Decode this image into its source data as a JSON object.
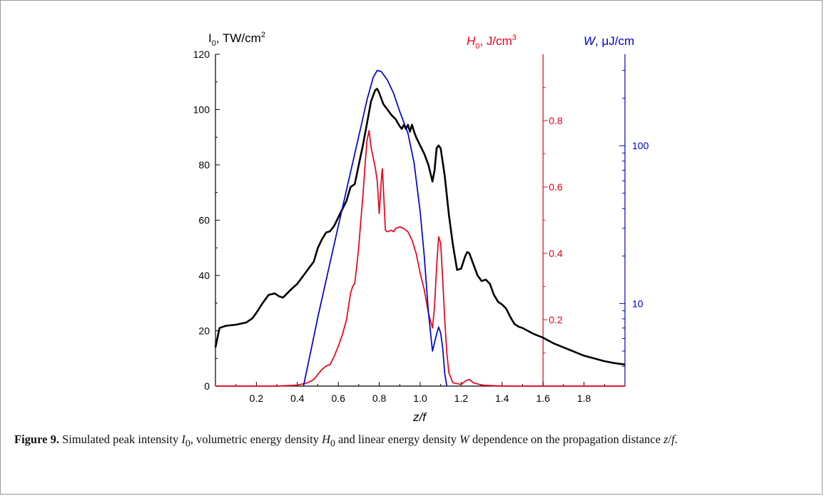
{
  "chart_data": {
    "type": "line",
    "xlabel": "z/f",
    "xlim": [
      0,
      2.0
    ],
    "x_ticks": [
      "0.2",
      "0.4",
      "0.6",
      "0.8",
      "1.0",
      "1.2",
      "1.4",
      "1.6",
      "1.8"
    ],
    "axes": {
      "left": {
        "label_main": "I",
        "label_sub": "0",
        "label_rest": ", TW/cm",
        "label_sup": "2",
        "ylim": [
          0,
          120
        ],
        "ticks": [
          "0",
          "20",
          "40",
          "60",
          "80",
          "100",
          "120"
        ],
        "color": "#000000"
      },
      "red": {
        "label_main": "H",
        "label_sub": "0",
        "label_rest": ", J/cm",
        "label_sup": "3",
        "ylim": [
          0,
          1.0
        ],
        "position_x": 1.6,
        "ticks": [
          "0.2",
          "0.4",
          "0.6",
          "0.8"
        ],
        "color": "#e8001a"
      },
      "blue": {
        "label_main": "W",
        "label_rest": ", μJ/cm",
        "scale": "log",
        "ylim": [
          3,
          380
        ],
        "ticks": [
          "10",
          "100"
        ],
        "color": "#0000cc"
      }
    },
    "series": [
      {
        "axis": "left",
        "color": "#000000",
        "points": [
          [
            0.0,
            14
          ],
          [
            0.02,
            21
          ],
          [
            0.05,
            21.8
          ],
          [
            0.1,
            22.2
          ],
          [
            0.15,
            23
          ],
          [
            0.18,
            24.5
          ],
          [
            0.2,
            26.5
          ],
          [
            0.23,
            30
          ],
          [
            0.26,
            33
          ],
          [
            0.29,
            33.5
          ],
          [
            0.31,
            32.5
          ],
          [
            0.33,
            32
          ],
          [
            0.35,
            33.5
          ],
          [
            0.37,
            35
          ],
          [
            0.4,
            37
          ],
          [
            0.42,
            39
          ],
          [
            0.44,
            41
          ],
          [
            0.46,
            43
          ],
          [
            0.48,
            45
          ],
          [
            0.5,
            50
          ],
          [
            0.52,
            53
          ],
          [
            0.54,
            55.5
          ],
          [
            0.56,
            56
          ],
          [
            0.58,
            58
          ],
          [
            0.6,
            61
          ],
          [
            0.62,
            64
          ],
          [
            0.64,
            67
          ],
          [
            0.66,
            72
          ],
          [
            0.68,
            73
          ],
          [
            0.7,
            80
          ],
          [
            0.72,
            87
          ],
          [
            0.74,
            95
          ],
          [
            0.76,
            103
          ],
          [
            0.78,
            107
          ],
          [
            0.79,
            107.5
          ],
          [
            0.8,
            106
          ],
          [
            0.82,
            102
          ],
          [
            0.84,
            100
          ],
          [
            0.86,
            98
          ],
          [
            0.88,
            96.5
          ],
          [
            0.9,
            94
          ],
          [
            0.91,
            93
          ],
          [
            0.92,
            94.5
          ],
          [
            0.93,
            93
          ],
          [
            0.94,
            94.5
          ],
          [
            0.95,
            92
          ],
          [
            0.96,
            94.5
          ],
          [
            0.97,
            92
          ],
          [
            0.98,
            90
          ],
          [
            1.0,
            87
          ],
          [
            1.02,
            84
          ],
          [
            1.04,
            80
          ],
          [
            1.06,
            74
          ],
          [
            1.07,
            78
          ],
          [
            1.08,
            86
          ],
          [
            1.09,
            87
          ],
          [
            1.1,
            86
          ],
          [
            1.12,
            76
          ],
          [
            1.14,
            62
          ],
          [
            1.16,
            51
          ],
          [
            1.18,
            42
          ],
          [
            1.2,
            42.5
          ],
          [
            1.22,
            47
          ],
          [
            1.23,
            48.5
          ],
          [
            1.24,
            48
          ],
          [
            1.26,
            44
          ],
          [
            1.28,
            40
          ],
          [
            1.3,
            38
          ],
          [
            1.32,
            38.5
          ],
          [
            1.34,
            37
          ],
          [
            1.36,
            33
          ],
          [
            1.38,
            30.5
          ],
          [
            1.4,
            29.5
          ],
          [
            1.42,
            28
          ],
          [
            1.44,
            25
          ],
          [
            1.46,
            22.5
          ],
          [
            1.48,
            21.5
          ],
          [
            1.5,
            21
          ],
          [
            1.55,
            19
          ],
          [
            1.6,
            17.5
          ],
          [
            1.65,
            15.5
          ],
          [
            1.7,
            14
          ],
          [
            1.75,
            12.5
          ],
          [
            1.8,
            11
          ],
          [
            1.85,
            10
          ],
          [
            1.9,
            9
          ],
          [
            1.95,
            8.3
          ],
          [
            2.0,
            7.8
          ]
        ]
      },
      {
        "axis": "red",
        "color": "#e8001a",
        "points": [
          [
            0.0,
            0
          ],
          [
            0.3,
            0
          ],
          [
            0.4,
            0.003
          ],
          [
            0.45,
            0.01
          ],
          [
            0.48,
            0.02
          ],
          [
            0.5,
            0.035
          ],
          [
            0.52,
            0.05
          ],
          [
            0.54,
            0.06
          ],
          [
            0.56,
            0.065
          ],
          [
            0.58,
            0.09
          ],
          [
            0.6,
            0.12
          ],
          [
            0.62,
            0.155
          ],
          [
            0.64,
            0.2
          ],
          [
            0.66,
            0.28
          ],
          [
            0.67,
            0.3
          ],
          [
            0.68,
            0.31
          ],
          [
            0.69,
            0.36
          ],
          [
            0.7,
            0.42
          ],
          [
            0.71,
            0.5
          ],
          [
            0.72,
            0.57
          ],
          [
            0.73,
            0.66
          ],
          [
            0.74,
            0.74
          ],
          [
            0.75,
            0.77
          ],
          [
            0.76,
            0.72
          ],
          [
            0.77,
            0.69
          ],
          [
            0.78,
            0.66
          ],
          [
            0.79,
            0.62
          ],
          [
            0.8,
            0.52
          ],
          [
            0.81,
            0.62
          ],
          [
            0.815,
            0.655
          ],
          [
            0.82,
            0.6
          ],
          [
            0.83,
            0.47
          ],
          [
            0.84,
            0.465
          ],
          [
            0.86,
            0.47
          ],
          [
            0.87,
            0.465
          ],
          [
            0.88,
            0.475
          ],
          [
            0.9,
            0.48
          ],
          [
            0.92,
            0.475
          ],
          [
            0.94,
            0.465
          ],
          [
            0.96,
            0.44
          ],
          [
            0.98,
            0.4
          ],
          [
            1.0,
            0.34
          ],
          [
            1.02,
            0.29
          ],
          [
            1.04,
            0.22
          ],
          [
            1.06,
            0.175
          ],
          [
            1.07,
            0.24
          ],
          [
            1.08,
            0.36
          ],
          [
            1.09,
            0.45
          ],
          [
            1.1,
            0.43
          ],
          [
            1.11,
            0.32
          ],
          [
            1.12,
            0.2
          ],
          [
            1.13,
            0.1
          ],
          [
            1.14,
            0.04
          ],
          [
            1.16,
            0.01
          ],
          [
            1.2,
            0.005
          ],
          [
            1.22,
            0.015
          ],
          [
            1.24,
            0.02
          ],
          [
            1.26,
            0.01
          ],
          [
            1.3,
            0.003
          ],
          [
            1.4,
            0
          ],
          [
            2.0,
            0
          ]
        ]
      },
      {
        "axis": "blue",
        "color": "#0000cc",
        "points": [
          [
            0.43,
            3.0
          ],
          [
            0.46,
            4.6
          ],
          [
            0.5,
            8.2
          ],
          [
            0.55,
            16
          ],
          [
            0.6,
            31
          ],
          [
            0.65,
            60
          ],
          [
            0.7,
            115
          ],
          [
            0.74,
            195
          ],
          [
            0.77,
            270
          ],
          [
            0.79,
            300
          ],
          [
            0.81,
            295
          ],
          [
            0.84,
            260
          ],
          [
            0.87,
            215
          ],
          [
            0.9,
            165
          ],
          [
            0.94,
            120
          ],
          [
            0.97,
            78
          ],
          [
            1.0,
            38
          ],
          [
            1.02,
            20
          ],
          [
            1.04,
            8.8
          ],
          [
            1.06,
            5.0
          ],
          [
            1.08,
            6.4
          ],
          [
            1.09,
            7.1
          ],
          [
            1.1,
            6.5
          ],
          [
            1.11,
            5.2
          ],
          [
            1.12,
            3.6
          ],
          [
            1.13,
            3.0
          ]
        ]
      }
    ]
  },
  "caption": {
    "figure_label": "Figure 9.",
    "t1": " Simulated peak intensity ",
    "I": "I",
    "I_sub": "0",
    "t2": ", volumetric energy density ",
    "H": "H",
    "H_sub": "0",
    "t3": " and linear energy density ",
    "W": "W",
    "t4": " dependence on the propagation distance ",
    "z": "z",
    "slash": "/",
    "f": "f",
    "t5": "."
  }
}
